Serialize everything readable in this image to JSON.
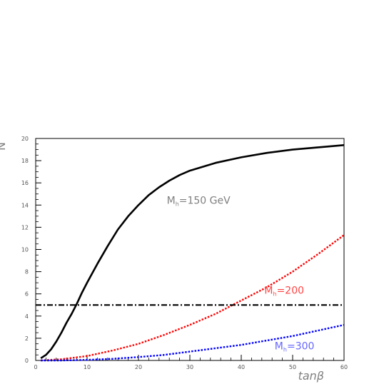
{
  "chart_data": {
    "type": "line",
    "xlabel": "tanβ",
    "ylabel": "N",
    "xlim": [
      0,
      60
    ],
    "ylim": [
      0,
      20
    ],
    "x_ticks": [
      0,
      10,
      20,
      30,
      40,
      50,
      60
    ],
    "y_ticks": [
      0,
      2,
      4,
      6,
      8,
      10,
      12,
      14,
      16,
      18,
      20
    ],
    "grid": false,
    "series": [
      {
        "style": "solid",
        "color": "#000000",
        "x": [
          1,
          2,
          3,
          4,
          5,
          6,
          7,
          8,
          9,
          10,
          12,
          14,
          16,
          18,
          20,
          22,
          24,
          26,
          28,
          30,
          35,
          40,
          45,
          50,
          55,
          60
        ],
        "y": [
          0.2,
          0.5,
          1.0,
          1.7,
          2.5,
          3.4,
          4.2,
          5.1,
          6.1,
          7.0,
          8.7,
          10.3,
          11.8,
          13.0,
          14.0,
          14.9,
          15.6,
          16.2,
          16.7,
          17.1,
          17.8,
          18.3,
          18.7,
          19.0,
          19.2,
          19.4
        ]
      },
      {
        "style": "dotted",
        "color": "#ff0000",
        "x": [
          1,
          5,
          10,
          15,
          20,
          25,
          30,
          35,
          40,
          45,
          50,
          55,
          60
        ],
        "y": [
          0.0,
          0.1,
          0.4,
          0.9,
          1.5,
          2.3,
          3.2,
          4.2,
          5.4,
          6.6,
          8.0,
          9.6,
          11.3
        ]
      },
      {
        "style": "dotted",
        "color": "#0000ff",
        "x": [
          1,
          5,
          10,
          15,
          20,
          25,
          30,
          35,
          40,
          45,
          50,
          55,
          60
        ],
        "y": [
          0.0,
          0.0,
          0.05,
          0.15,
          0.3,
          0.5,
          0.8,
          1.1,
          1.4,
          1.8,
          2.2,
          2.7,
          3.2
        ]
      },
      {
        "style": "dash-dot",
        "color": "#000000",
        "x": [
          0,
          60
        ],
        "y": [
          5,
          5
        ]
      }
    ],
    "annotations": [
      {
        "text": "M",
        "sub": "h",
        "rest": "=150 GeV",
        "x": 25.5,
        "y": 14.1,
        "color": "#808080"
      },
      {
        "text": "M",
        "sub": "h",
        "rest": "=200",
        "x": 44.5,
        "y": 6.0,
        "color": "#ff4444"
      },
      {
        "text": "M",
        "sub": "h",
        "rest": "=300",
        "x": 46.5,
        "y": 1.0,
        "color": "#6666ff"
      }
    ]
  }
}
